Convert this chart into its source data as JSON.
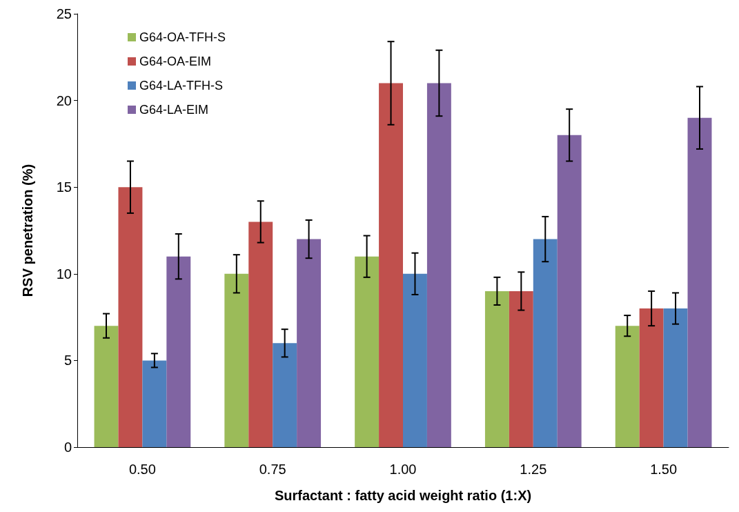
{
  "chart_data": {
    "type": "bar",
    "xlabel": "Surfactant : fatty acid weight ratio (1:X)",
    "ylabel": "RSV penetration (%)",
    "categories": [
      "0.50",
      "0.75",
      "1.00",
      "1.25",
      "1.50"
    ],
    "series": [
      {
        "name": "G64-OA-TFH-S",
        "color": "#9bbb59",
        "values": [
          7,
          10,
          11,
          9,
          7
        ],
        "errors": [
          0.7,
          1.1,
          1.2,
          0.8,
          0.6
        ]
      },
      {
        "name": "G64-OA-EIM",
        "color": "#c0504d",
        "values": [
          15,
          13,
          21,
          9,
          8
        ],
        "errors": [
          1.5,
          1.2,
          2.4,
          1.1,
          1
        ]
      },
      {
        "name": "G64-LA-TFH-S",
        "color": "#4f81bd",
        "values": [
          5,
          6,
          10,
          12,
          8
        ],
        "errors": [
          0.4,
          0.8,
          1.2,
          1.3,
          0.9
        ]
      },
      {
        "name": "G64-LA-EIM",
        "color": "#8064a2",
        "values": [
          11,
          12,
          21,
          18,
          19
        ],
        "errors": [
          1.3,
          1.1,
          1.9,
          1.5,
          1.8
        ]
      }
    ],
    "ylim": [
      0,
      25
    ],
    "yticks": [
      0,
      5,
      10,
      15,
      20,
      25
    ],
    "grid": false,
    "legend": "top left"
  }
}
